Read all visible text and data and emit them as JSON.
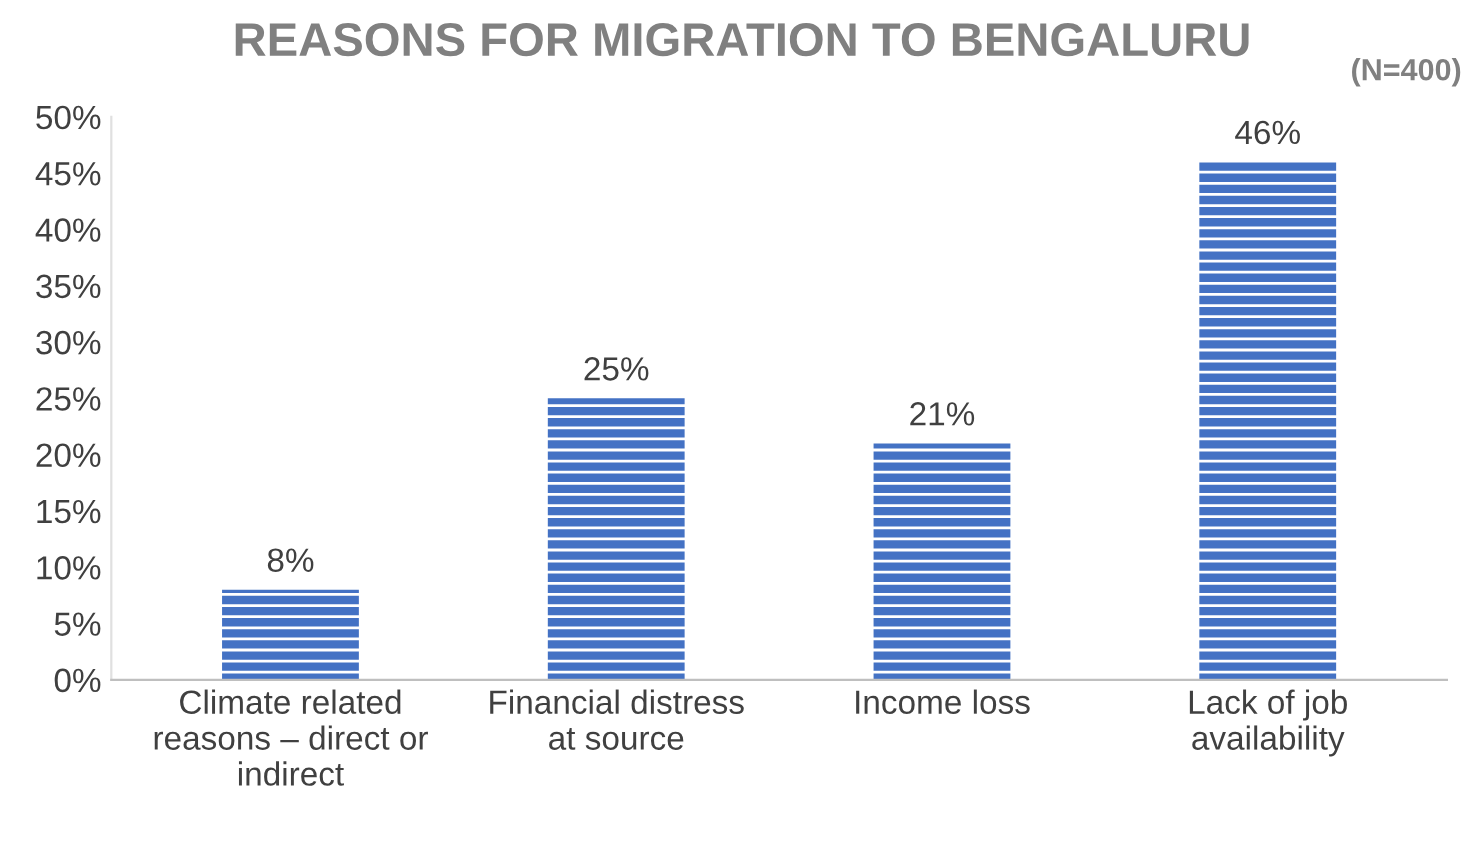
{
  "chart_data": {
    "type": "bar",
    "title": "REASONS FOR MIGRATION TO BENGALURU",
    "categories": [
      "Climate related\nreasons – direct or\nindirect",
      "Financial distress\nat source",
      "Income loss",
      "Lack of job\navailability"
    ],
    "values": [
      8,
      25,
      21,
      46
    ],
    "color": "#4472c4",
    "ylim": [
      0,
      50
    ],
    "yticks": [
      {
        "value": 0,
        "label": "0%"
      },
      {
        "value": 5,
        "label": "5%"
      },
      {
        "value": 10,
        "label": "10%"
      },
      {
        "value": 15,
        "label": "15%"
      },
      {
        "value": 20,
        "label": "20%"
      },
      {
        "value": 25,
        "label": "25%"
      },
      {
        "value": 30,
        "label": "30%"
      },
      {
        "value": 35,
        "label": "35%"
      },
      {
        "value": 40,
        "label": "40%"
      },
      {
        "value": 45,
        "label": "45%"
      },
      {
        "value": 50,
        "label": "50%"
      }
    ],
    "value_labels": [
      "8%",
      "25%",
      "21%",
      "46%"
    ],
    "annotations": [
      "(N=400)"
    ],
    "grid": false,
    "legend": false
  }
}
